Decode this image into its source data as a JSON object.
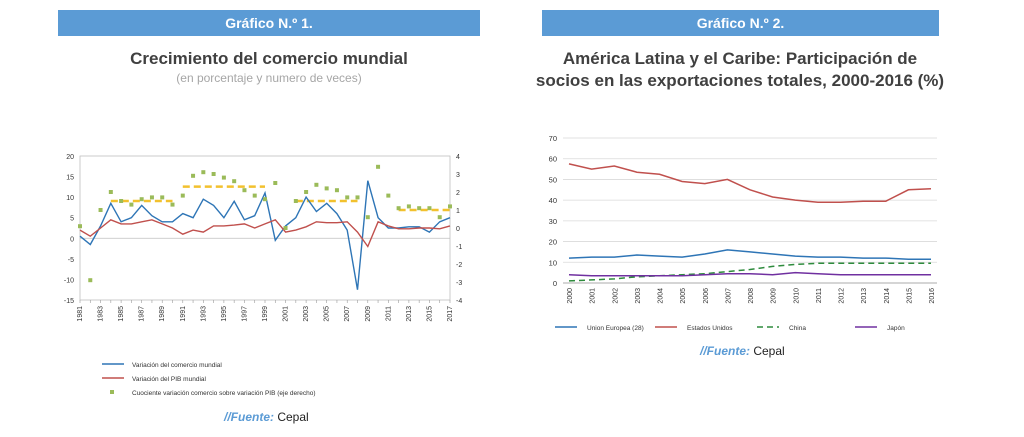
{
  "left": {
    "banner": "Gráfico N.º 1.",
    "title": "Crecimiento del comercio mundial",
    "subtitle": "(en porcentaje y numero de veces)",
    "source_label": "//Fuente:",
    "source_value": "Cepal"
  },
  "right": {
    "banner": "Gráfico N.º 2.",
    "title_line1": "América Latina y el Caribe: Participación de",
    "title_line2": "socios en las exportaciones totales, 2000-2016 (%)",
    "source_label": "//Fuente:",
    "source_value": "Cepal"
  },
  "chart_data": [
    {
      "type": "line",
      "x": [
        1981,
        1982,
        1983,
        1984,
        1985,
        1986,
        1987,
        1988,
        1989,
        1990,
        1991,
        1992,
        1993,
        1994,
        1995,
        1996,
        1997,
        1998,
        1999,
        2000,
        2001,
        2002,
        2003,
        2004,
        2005,
        2006,
        2007,
        2008,
        2009,
        2010,
        2011,
        2012,
        2013,
        2014,
        2015,
        2016,
        2017
      ],
      "x_tick_labels": [
        "1981",
        "1983",
        "1985",
        "1987",
        "1989",
        "1991",
        "1993",
        "1995",
        "1997",
        "1999",
        "2001",
        "2003",
        "2005",
        "2007",
        "2009",
        "2011",
        "2013",
        "2015",
        "2017"
      ],
      "ylim": [
        -15,
        20
      ],
      "y_ticks": [
        -15,
        -10,
        -5,
        0,
        5,
        10,
        15,
        20
      ],
      "y2lim": [
        -4,
        4
      ],
      "y2_ticks": [
        -4,
        -3,
        -2,
        -1,
        0,
        1,
        2,
        3,
        4
      ],
      "series": [
        {
          "name": "Variación del comercio mundial",
          "axis": "left",
          "color": "#2e75b6",
          "values": [
            0.5,
            -1.5,
            3,
            8.5,
            4,
            5,
            8,
            5.5,
            4,
            4,
            6,
            5,
            9.5,
            8,
            5,
            9,
            4.5,
            5.5,
            11,
            -0.5,
            3,
            5,
            10,
            6.5,
            8.5,
            6,
            2,
            -12.5,
            14,
            5,
            2.5,
            2.5,
            2.8,
            2.8,
            1.5,
            4,
            5
          ]
        },
        {
          "name": "Variación del PIB mundial",
          "axis": "left",
          "color": "#c0504d",
          "values": [
            2,
            0.5,
            2.5,
            4.5,
            3.5,
            3.5,
            4,
            4.5,
            3.5,
            2.5,
            1,
            2,
            1.5,
            3,
            3,
            3.2,
            3.5,
            2.5,
            3.5,
            4.5,
            1.5,
            2,
            2.8,
            4,
            3.8,
            3.8,
            4,
            1.5,
            -2,
            4,
            3,
            2.3,
            2.3,
            2.5,
            2.5,
            2.3,
            3
          ]
        },
        {
          "name": "Cuociente variación comercio sobre variación PIB (eje derecho)",
          "axis": "right",
          "color": "#9bbb59",
          "values": [
            0.1,
            -2.9,
            1,
            2,
            1.5,
            1.3,
            1.6,
            1.7,
            1.7,
            1.3,
            1.8,
            2.9,
            3.1,
            3,
            2.8,
            2.6,
            2.1,
            1.8,
            1.6,
            2.5,
            0,
            1.5,
            2,
            2.4,
            2.2,
            2.1,
            1.7,
            1.7,
            0.6,
            3.4,
            1.8,
            1.1,
            1.2,
            1.1,
            1.1,
            0.6,
            1.2
          ]
        }
      ],
      "averages": [
        {
          "from": 1984,
          "to": 1990,
          "value": 1.5
        },
        {
          "from": 1991,
          "to": 1999,
          "value": 2.3
        },
        {
          "from": 2002,
          "to": 2008,
          "value": 1.5
        },
        {
          "from": 2012,
          "to": 2017,
          "value": 1.0
        }
      ],
      "legend": [
        "Variación del comercio mundial",
        "Variación del PIB mundial",
        "Cuociente variación comercio sobre variación PIB (eje derecho)"
      ]
    },
    {
      "type": "line",
      "x": [
        2000,
        2001,
        2002,
        2003,
        2004,
        2005,
        2006,
        2007,
        2008,
        2009,
        2010,
        2011,
        2012,
        2013,
        2014,
        2015,
        2016
      ],
      "x_tick_labels": [
        "2000",
        "2001",
        "2002",
        "2003",
        "2004",
        "2005",
        "2006",
        "2007",
        "2008",
        "2009",
        "2010",
        "2011",
        "2012",
        "2013",
        "2014",
        "2015",
        "2016"
      ],
      "ylim": [
        0,
        70
      ],
      "y_ticks": [
        0,
        10,
        20,
        30,
        40,
        50,
        60,
        70
      ],
      "series": [
        {
          "name": "Union Europea (28)",
          "color": "#2e75b6",
          "dash": "",
          "values": [
            12,
            12.5,
            12.5,
            13.5,
            13,
            12.5,
            14,
            16,
            15,
            14,
            13,
            12.5,
            12.5,
            12,
            12,
            11.5,
            11.5
          ]
        },
        {
          "name": "Estados Unidos",
          "color": "#c0504d",
          "dash": "",
          "values": [
            57.5,
            55,
            56.5,
            53.5,
            52.5,
            49,
            48,
            50,
            45,
            41.5,
            40,
            39,
            39,
            39.5,
            39.5,
            45,
            45.5
          ]
        },
        {
          "name": "China",
          "color": "#2e8b3d",
          "dash": "6,4",
          "values": [
            1,
            1.5,
            2,
            3,
            3.5,
            4,
            4.5,
            5.5,
            6.5,
            8,
            9,
            9.5,
            9.5,
            9.5,
            9.5,
            9.5,
            9.5
          ]
        },
        {
          "name": "Japón",
          "color": "#7030a0",
          "dash": "",
          "values": [
            4,
            3.5,
            3.5,
            3.5,
            3.5,
            3.5,
            4,
            4.5,
            4.5,
            4,
            5,
            4.5,
            4,
            4,
            4,
            4,
            4
          ]
        }
      ],
      "legend": [
        "Union Europea (28)",
        "Estados Unidos",
        "China",
        "Japón"
      ]
    }
  ]
}
